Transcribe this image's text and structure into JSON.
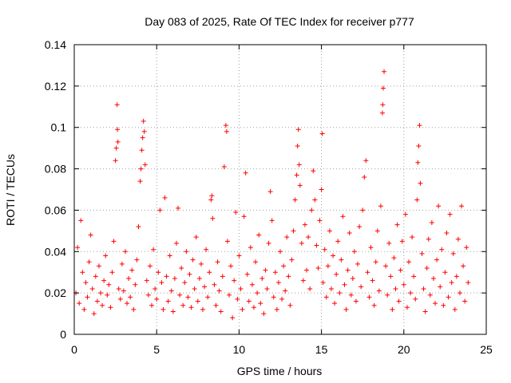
{
  "chart_data": {
    "type": "scatter",
    "title": "Day 083 of 2025, Rate Of TEC Index for receiver p777",
    "xlabel": "GPS time / hours",
    "ylabel": "ROTI / TECUs",
    "xlim": [
      0,
      25
    ],
    "ylim": [
      0,
      0.14
    ],
    "xticks": [
      0,
      5,
      10,
      15,
      20,
      25
    ],
    "xtick_labels": [
      "0",
      "5",
      "10",
      "15",
      "20",
      "25"
    ],
    "yticks": [
      0,
      0.02,
      0.04,
      0.06,
      0.08,
      0.1,
      0.12,
      0.14
    ],
    "ytick_labels": [
      "0",
      "0.02",
      "0.04",
      "0.06",
      "0.08",
      "0.1",
      "0.12",
      "0.14"
    ],
    "grid": true,
    "marker": "+",
    "color": "#ff0000",
    "series": [
      {
        "name": "ROTI",
        "points": [
          [
            0.1,
            0.02
          ],
          [
            0.2,
            0.042
          ],
          [
            0.3,
            0.015
          ],
          [
            0.4,
            0.055
          ],
          [
            0.5,
            0.03
          ],
          [
            0.6,
            0.012
          ],
          [
            0.7,
            0.025
          ],
          [
            0.8,
            0.018
          ],
          [
            0.9,
            0.035
          ],
          [
            1.0,
            0.048
          ],
          [
            1.1,
            0.022
          ],
          [
            1.2,
            0.01
          ],
          [
            1.3,
            0.028
          ],
          [
            1.4,
            0.016
          ],
          [
            1.5,
            0.033
          ],
          [
            1.6,
            0.02
          ],
          [
            1.7,
            0.014
          ],
          [
            1.8,
            0.026
          ],
          [
            1.9,
            0.038
          ],
          [
            2.0,
            0.019
          ],
          [
            2.1,
            0.024
          ],
          [
            2.2,
            0.013
          ],
          [
            2.3,
            0.03
          ],
          [
            2.4,
            0.045
          ],
          [
            2.5,
            0.084
          ],
          [
            2.55,
            0.09
          ],
          [
            2.6,
            0.111
          ],
          [
            2.62,
            0.099
          ],
          [
            2.65,
            0.093
          ],
          [
            2.7,
            0.022
          ],
          [
            2.8,
            0.017
          ],
          [
            2.9,
            0.034
          ],
          [
            3.0,
            0.021
          ],
          [
            3.1,
            0.04
          ],
          [
            3.2,
            0.015
          ],
          [
            3.3,
            0.027
          ],
          [
            3.4,
            0.018
          ],
          [
            3.5,
            0.031
          ],
          [
            3.6,
            0.012
          ],
          [
            3.7,
            0.024
          ],
          [
            3.8,
            0.036
          ],
          [
            3.9,
            0.052
          ],
          [
            4.0,
            0.074
          ],
          [
            4.05,
            0.08
          ],
          [
            4.1,
            0.089
          ],
          [
            4.15,
            0.095
          ],
          [
            4.2,
            0.103
          ],
          [
            4.25,
            0.098
          ],
          [
            4.3,
            0.082
          ],
          [
            4.4,
            0.026
          ],
          [
            4.5,
            0.019
          ],
          [
            4.6,
            0.033
          ],
          [
            4.7,
            0.014
          ],
          [
            4.8,
            0.041
          ],
          [
            4.9,
            0.022
          ],
          [
            5.0,
            0.017
          ],
          [
            5.1,
            0.03
          ],
          [
            5.2,
            0.06
          ],
          [
            5.3,
            0.025
          ],
          [
            5.4,
            0.012
          ],
          [
            5.5,
            0.066
          ],
          [
            5.6,
            0.028
          ],
          [
            5.7,
            0.016
          ],
          [
            5.8,
            0.038
          ],
          [
            5.9,
            0.021
          ],
          [
            6.0,
            0.011
          ],
          [
            6.1,
            0.027
          ],
          [
            6.2,
            0.044
          ],
          [
            6.3,
            0.061
          ],
          [
            6.4,
            0.019
          ],
          [
            6.5,
            0.032
          ],
          [
            6.6,
            0.014
          ],
          [
            6.7,
            0.025
          ],
          [
            6.8,
            0.04
          ],
          [
            6.9,
            0.018
          ],
          [
            7.0,
            0.029
          ],
          [
            7.1,
            0.013
          ],
          [
            7.2,
            0.036
          ],
          [
            7.3,
            0.022
          ],
          [
            7.4,
            0.047
          ],
          [
            7.5,
            0.016
          ],
          [
            7.6,
            0.027
          ],
          [
            7.7,
            0.034
          ],
          [
            7.8,
            0.012
          ],
          [
            7.9,
            0.023
          ],
          [
            8.0,
            0.041
          ],
          [
            8.1,
            0.018
          ],
          [
            8.2,
            0.03
          ],
          [
            8.3,
            0.065
          ],
          [
            8.35,
            0.067
          ],
          [
            8.4,
            0.056
          ],
          [
            8.5,
            0.024
          ],
          [
            8.6,
            0.014
          ],
          [
            8.7,
            0.035
          ],
          [
            8.8,
            0.021
          ],
          [
            8.9,
            0.011
          ],
          [
            9.0,
            0.028
          ],
          [
            9.1,
            0.081
          ],
          [
            9.2,
            0.101
          ],
          [
            9.25,
            0.098
          ],
          [
            9.3,
            0.045
          ],
          [
            9.4,
            0.019
          ],
          [
            9.5,
            0.033
          ],
          [
            9.6,
            0.008
          ],
          [
            9.7,
            0.026
          ],
          [
            9.8,
            0.059
          ],
          [
            9.9,
            0.017
          ],
          [
            10.0,
            0.038
          ],
          [
            10.1,
            0.022
          ],
          [
            10.2,
            0.012
          ],
          [
            10.3,
            0.057
          ],
          [
            10.4,
            0.078
          ],
          [
            10.5,
            0.029
          ],
          [
            10.6,
            0.016
          ],
          [
            10.7,
            0.042
          ],
          [
            10.8,
            0.024
          ],
          [
            10.9,
            0.013
          ],
          [
            11.0,
            0.035
          ],
          [
            11.1,
            0.02
          ],
          [
            11.2,
            0.048
          ],
          [
            11.3,
            0.015
          ],
          [
            11.4,
            0.027
          ],
          [
            11.5,
            0.01
          ],
          [
            11.6,
            0.031
          ],
          [
            11.7,
            0.022
          ],
          [
            11.8,
            0.044
          ],
          [
            11.9,
            0.069
          ],
          [
            12.0,
            0.055
          ],
          [
            12.1,
            0.018
          ],
          [
            12.2,
            0.03
          ],
          [
            12.3,
            0.012
          ],
          [
            12.4,
            0.025
          ],
          [
            12.5,
            0.04
          ],
          [
            12.6,
            0.017
          ],
          [
            12.7,
            0.033
          ],
          [
            12.8,
            0.021
          ],
          [
            12.9,
            0.047
          ],
          [
            13.0,
            0.028
          ],
          [
            13.1,
            0.014
          ],
          [
            13.2,
            0.036
          ],
          [
            13.3,
            0.05
          ],
          [
            13.4,
            0.065
          ],
          [
            13.5,
            0.077
          ],
          [
            13.55,
            0.091
          ],
          [
            13.6,
            0.099
          ],
          [
            13.65,
            0.082
          ],
          [
            13.7,
            0.072
          ],
          [
            13.8,
            0.044
          ],
          [
            13.9,
            0.026
          ],
          [
            14.0,
            0.053
          ],
          [
            14.1,
            0.031
          ],
          [
            14.2,
            0.047
          ],
          [
            14.3,
            0.022
          ],
          [
            14.4,
            0.06
          ],
          [
            14.5,
            0.079
          ],
          [
            14.6,
            0.065
          ],
          [
            14.7,
            0.043
          ],
          [
            14.8,
            0.032
          ],
          [
            14.9,
            0.055
          ],
          [
            15.0,
            0.07
          ],
          [
            15.05,
            0.097
          ],
          [
            15.1,
            0.025
          ],
          [
            15.2,
            0.041
          ],
          [
            15.3,
            0.018
          ],
          [
            15.4,
            0.033
          ],
          [
            15.5,
            0.05
          ],
          [
            15.6,
            0.022
          ],
          [
            15.7,
            0.038
          ],
          [
            15.8,
            0.015
          ],
          [
            15.9,
            0.029
          ],
          [
            16.0,
            0.045
          ],
          [
            16.1,
            0.02
          ],
          [
            16.2,
            0.036
          ],
          [
            16.3,
            0.057
          ],
          [
            16.4,
            0.024
          ],
          [
            16.5,
            0.012
          ],
          [
            16.6,
            0.031
          ],
          [
            16.7,
            0.049
          ],
          [
            16.8,
            0.019
          ],
          [
            16.9,
            0.027
          ],
          [
            17.0,
            0.04
          ],
          [
            17.1,
            0.016
          ],
          [
            17.2,
            0.034
          ],
          [
            17.3,
            0.052
          ],
          [
            17.4,
            0.023
          ],
          [
            17.5,
            0.06
          ],
          [
            17.6,
            0.076
          ],
          [
            17.7,
            0.084
          ],
          [
            17.8,
            0.03
          ],
          [
            17.9,
            0.018
          ],
          [
            18.0,
            0.042
          ],
          [
            18.1,
            0.026
          ],
          [
            18.2,
            0.014
          ],
          [
            18.3,
            0.035
          ],
          [
            18.4,
            0.05
          ],
          [
            18.5,
            0.021
          ],
          [
            18.6,
            0.062
          ],
          [
            18.7,
            0.107
          ],
          [
            18.72,
            0.111
          ],
          [
            18.75,
            0.119
          ],
          [
            18.8,
            0.127
          ],
          [
            18.9,
            0.033
          ],
          [
            19.0,
            0.019
          ],
          [
            19.1,
            0.044
          ],
          [
            19.2,
            0.028
          ],
          [
            19.3,
            0.012
          ],
          [
            19.4,
            0.037
          ],
          [
            19.5,
            0.022
          ],
          [
            19.6,
            0.053
          ],
          [
            19.7,
            0.016
          ],
          [
            19.8,
            0.031
          ],
          [
            19.9,
            0.045
          ],
          [
            20.0,
            0.024
          ],
          [
            20.1,
            0.058
          ],
          [
            20.2,
            0.013
          ],
          [
            20.3,
            0.035
          ],
          [
            20.4,
            0.02
          ],
          [
            20.5,
            0.047
          ],
          [
            20.6,
            0.028
          ],
          [
            20.7,
            0.017
          ],
          [
            20.8,
            0.065
          ],
          [
            20.85,
            0.083
          ],
          [
            20.9,
            0.091
          ],
          [
            20.95,
            0.101
          ],
          [
            21.0,
            0.073
          ],
          [
            21.1,
            0.039
          ],
          [
            21.2,
            0.022
          ],
          [
            21.3,
            0.011
          ],
          [
            21.4,
            0.032
          ],
          [
            21.5,
            0.046
          ],
          [
            21.6,
            0.019
          ],
          [
            21.7,
            0.054
          ],
          [
            21.8,
            0.027
          ],
          [
            21.9,
            0.015
          ],
          [
            22.0,
            0.036
          ],
          [
            22.1,
            0.062
          ],
          [
            22.2,
            0.023
          ],
          [
            22.3,
            0.041
          ],
          [
            22.4,
            0.014
          ],
          [
            22.5,
            0.03
          ],
          [
            22.6,
            0.049
          ],
          [
            22.7,
            0.018
          ],
          [
            22.8,
            0.058
          ],
          [
            22.9,
            0.025
          ],
          [
            23.0,
            0.039
          ],
          [
            23.1,
            0.012
          ],
          [
            23.2,
            0.028
          ],
          [
            23.3,
            0.046
          ],
          [
            23.4,
            0.02
          ],
          [
            23.5,
            0.062
          ],
          [
            23.6,
            0.033
          ],
          [
            23.7,
            0.016
          ],
          [
            23.8,
            0.042
          ],
          [
            23.9,
            0.025
          ]
        ]
      }
    ]
  }
}
